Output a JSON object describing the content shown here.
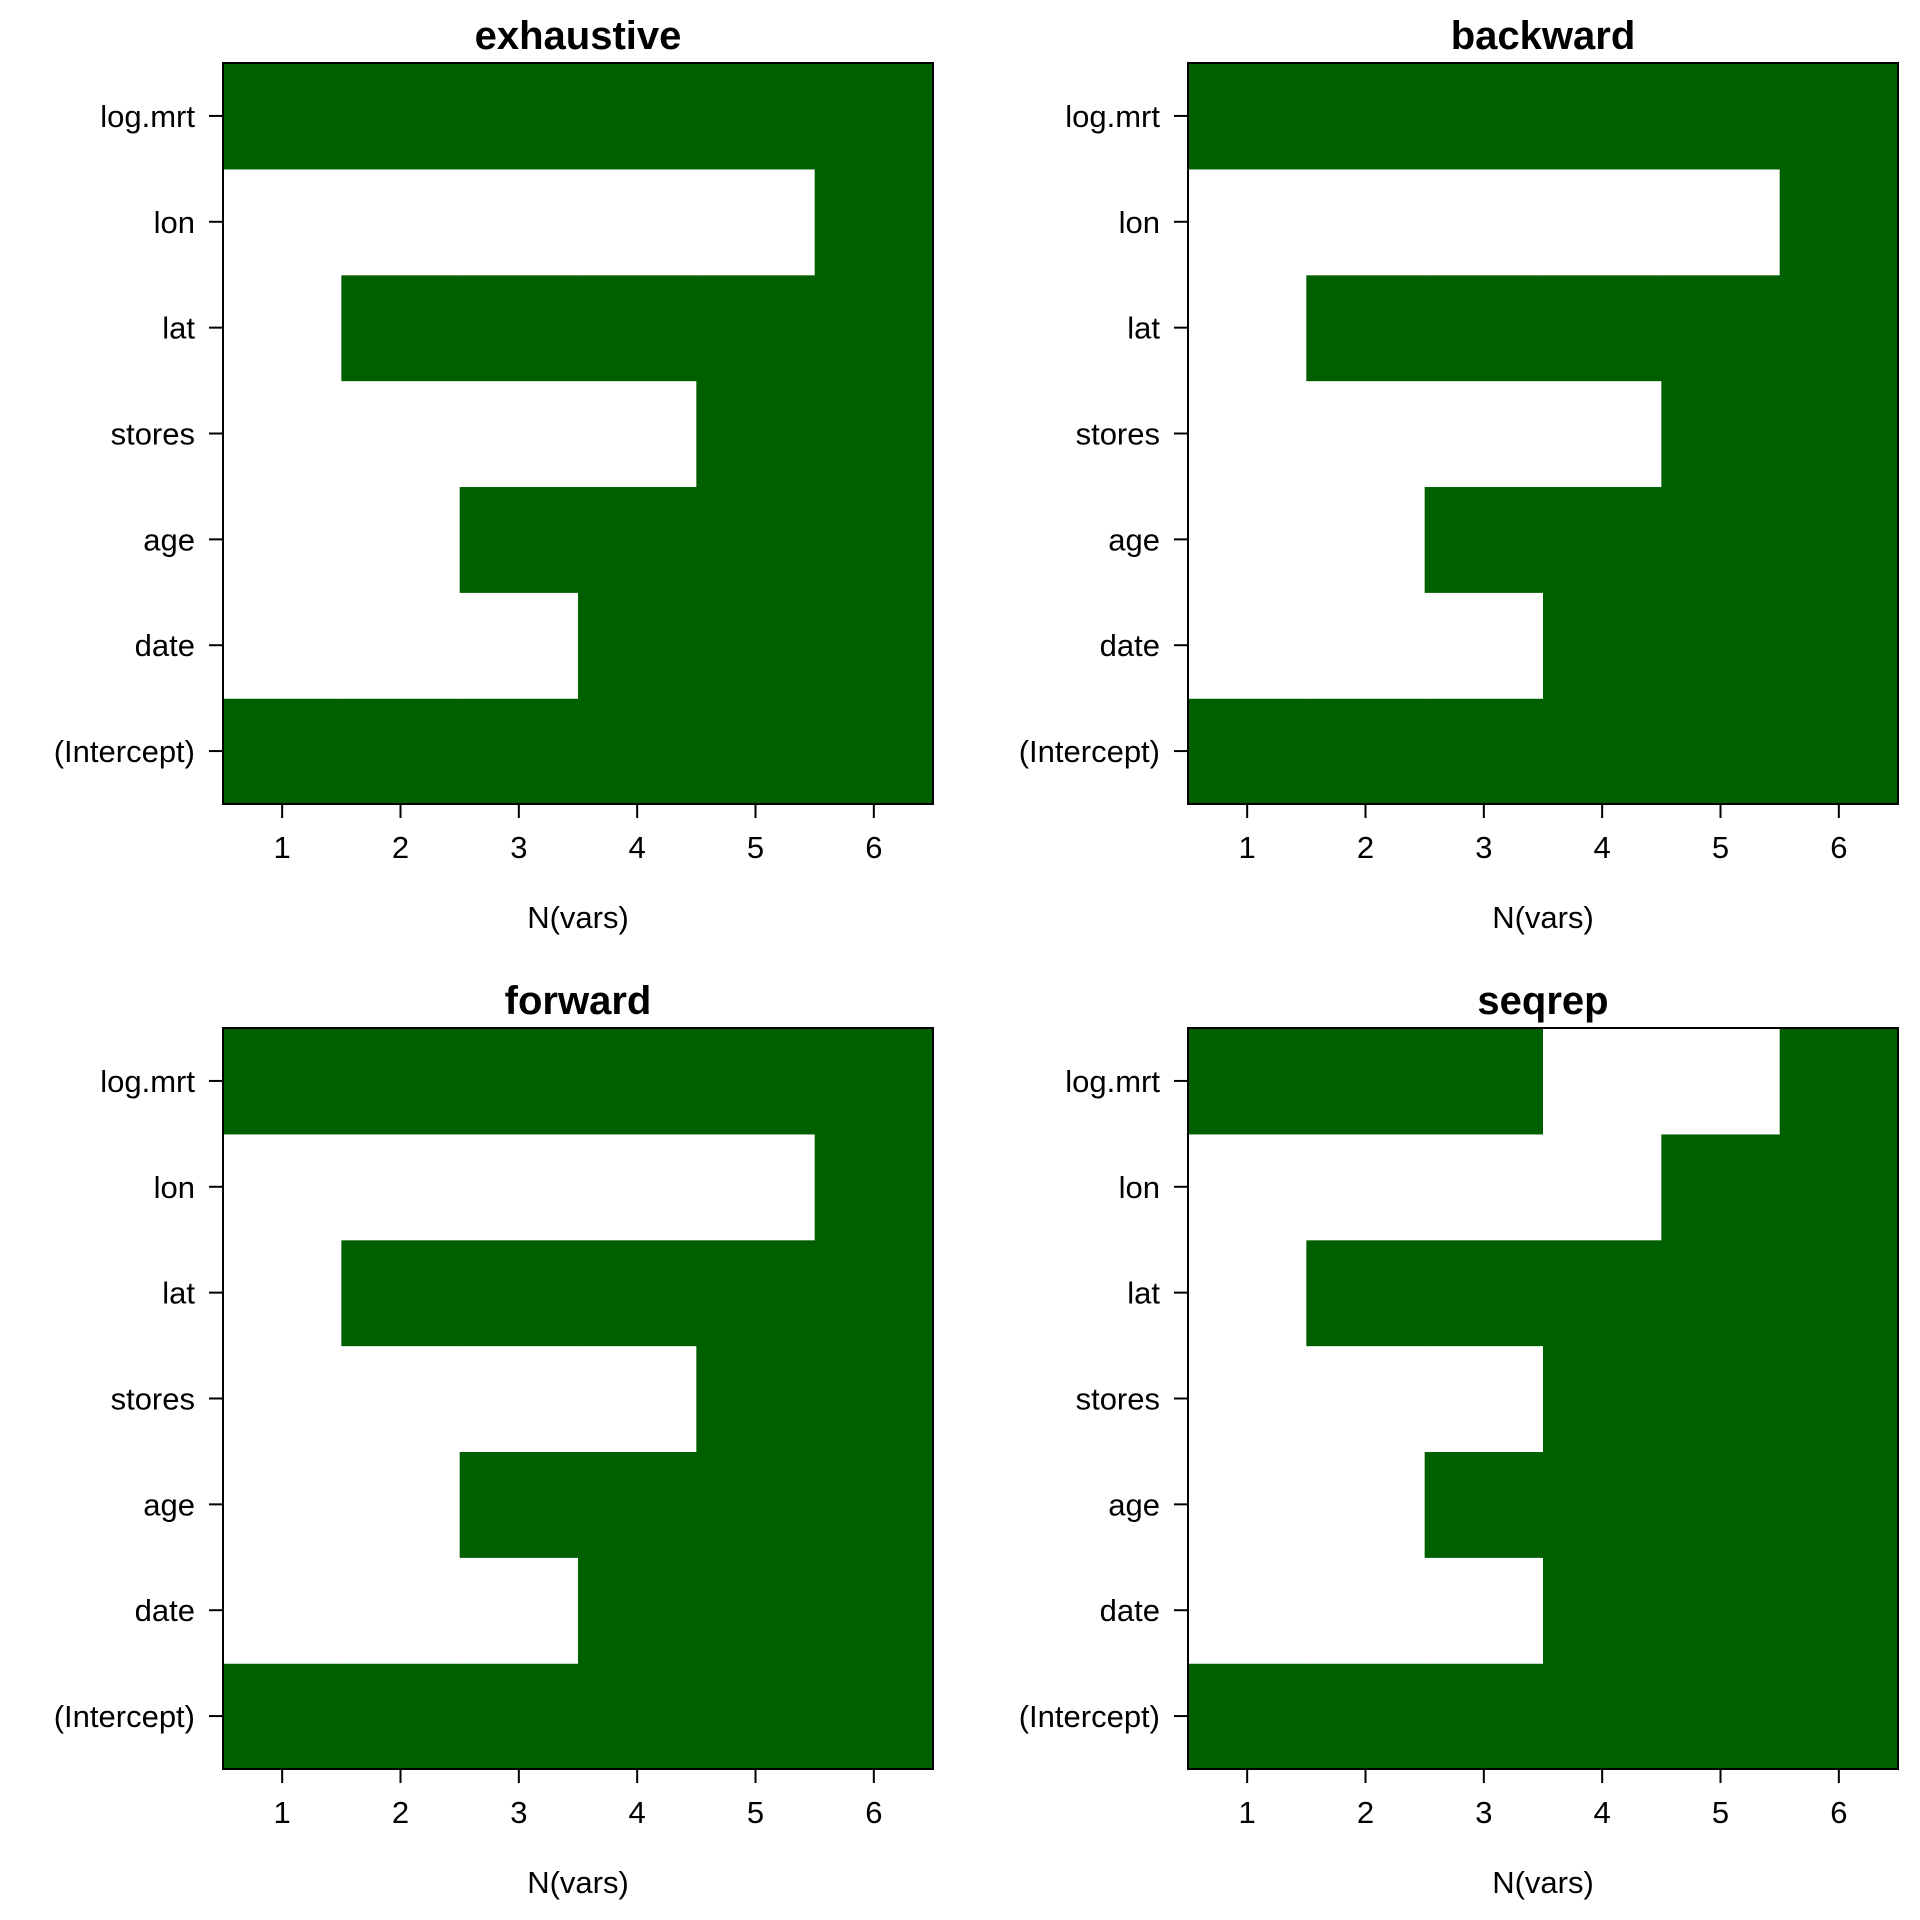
{
  "chart_data": [
    {
      "type": "heatmap",
      "title": "exhaustive",
      "xlabel": "N(vars)",
      "ylabel": "",
      "x": [
        1,
        2,
        3,
        4,
        5,
        6
      ],
      "variables": [
        "(Intercept)",
        "date",
        "age",
        "stores",
        "lat",
        "lon",
        "log.mrt"
      ],
      "included": {
        "(Intercept)": [
          1,
          1,
          1,
          1,
          1,
          1
        ],
        "date": [
          0,
          0,
          0,
          1,
          1,
          1
        ],
        "age": [
          0,
          0,
          1,
          1,
          1,
          1
        ],
        "stores": [
          0,
          0,
          0,
          0,
          1,
          1
        ],
        "lat": [
          0,
          1,
          1,
          1,
          1,
          1
        ],
        "lon": [
          0,
          0,
          0,
          0,
          0,
          1
        ],
        "log.mrt": [
          1,
          1,
          1,
          1,
          1,
          1
        ]
      },
      "fill_color": "#006000",
      "empty_color": "#ffffff"
    },
    {
      "type": "heatmap",
      "title": "backward",
      "xlabel": "N(vars)",
      "ylabel": "",
      "x": [
        1,
        2,
        3,
        4,
        5,
        6
      ],
      "variables": [
        "(Intercept)",
        "date",
        "age",
        "stores",
        "lat",
        "lon",
        "log.mrt"
      ],
      "included": {
        "(Intercept)": [
          1,
          1,
          1,
          1,
          1,
          1
        ],
        "date": [
          0,
          0,
          0,
          1,
          1,
          1
        ],
        "age": [
          0,
          0,
          1,
          1,
          1,
          1
        ],
        "stores": [
          0,
          0,
          0,
          0,
          1,
          1
        ],
        "lat": [
          0,
          1,
          1,
          1,
          1,
          1
        ],
        "lon": [
          0,
          0,
          0,
          0,
          0,
          1
        ],
        "log.mrt": [
          1,
          1,
          1,
          1,
          1,
          1
        ]
      },
      "fill_color": "#006000",
      "empty_color": "#ffffff"
    },
    {
      "type": "heatmap",
      "title": "forward",
      "xlabel": "N(vars)",
      "ylabel": "",
      "x": [
        1,
        2,
        3,
        4,
        5,
        6
      ],
      "variables": [
        "(Intercept)",
        "date",
        "age",
        "stores",
        "lat",
        "lon",
        "log.mrt"
      ],
      "included": {
        "(Intercept)": [
          1,
          1,
          1,
          1,
          1,
          1
        ],
        "date": [
          0,
          0,
          0,
          1,
          1,
          1
        ],
        "age": [
          0,
          0,
          1,
          1,
          1,
          1
        ],
        "stores": [
          0,
          0,
          0,
          0,
          1,
          1
        ],
        "lat": [
          0,
          1,
          1,
          1,
          1,
          1
        ],
        "lon": [
          0,
          0,
          0,
          0,
          0,
          1
        ],
        "log.mrt": [
          1,
          1,
          1,
          1,
          1,
          1
        ]
      },
      "fill_color": "#006000",
      "empty_color": "#ffffff"
    },
    {
      "type": "heatmap",
      "title": "seqrep",
      "xlabel": "N(vars)",
      "ylabel": "",
      "x": [
        1,
        2,
        3,
        4,
        5,
        6
      ],
      "variables": [
        "(Intercept)",
        "date",
        "age",
        "stores",
        "lat",
        "lon",
        "log.mrt"
      ],
      "included": {
        "(Intercept)": [
          1,
          1,
          1,
          1,
          1,
          1
        ],
        "date": [
          0,
          0,
          0,
          1,
          1,
          1
        ],
        "age": [
          0,
          0,
          1,
          1,
          1,
          1
        ],
        "stores": [
          0,
          0,
          0,
          1,
          1,
          1
        ],
        "lat": [
          0,
          1,
          1,
          1,
          1,
          1
        ],
        "lon": [
          0,
          0,
          0,
          0,
          1,
          1
        ],
        "log.mrt": [
          1,
          1,
          1,
          0,
          0,
          1
        ]
      },
      "fill_color": "#006000",
      "empty_color": "#ffffff"
    }
  ]
}
